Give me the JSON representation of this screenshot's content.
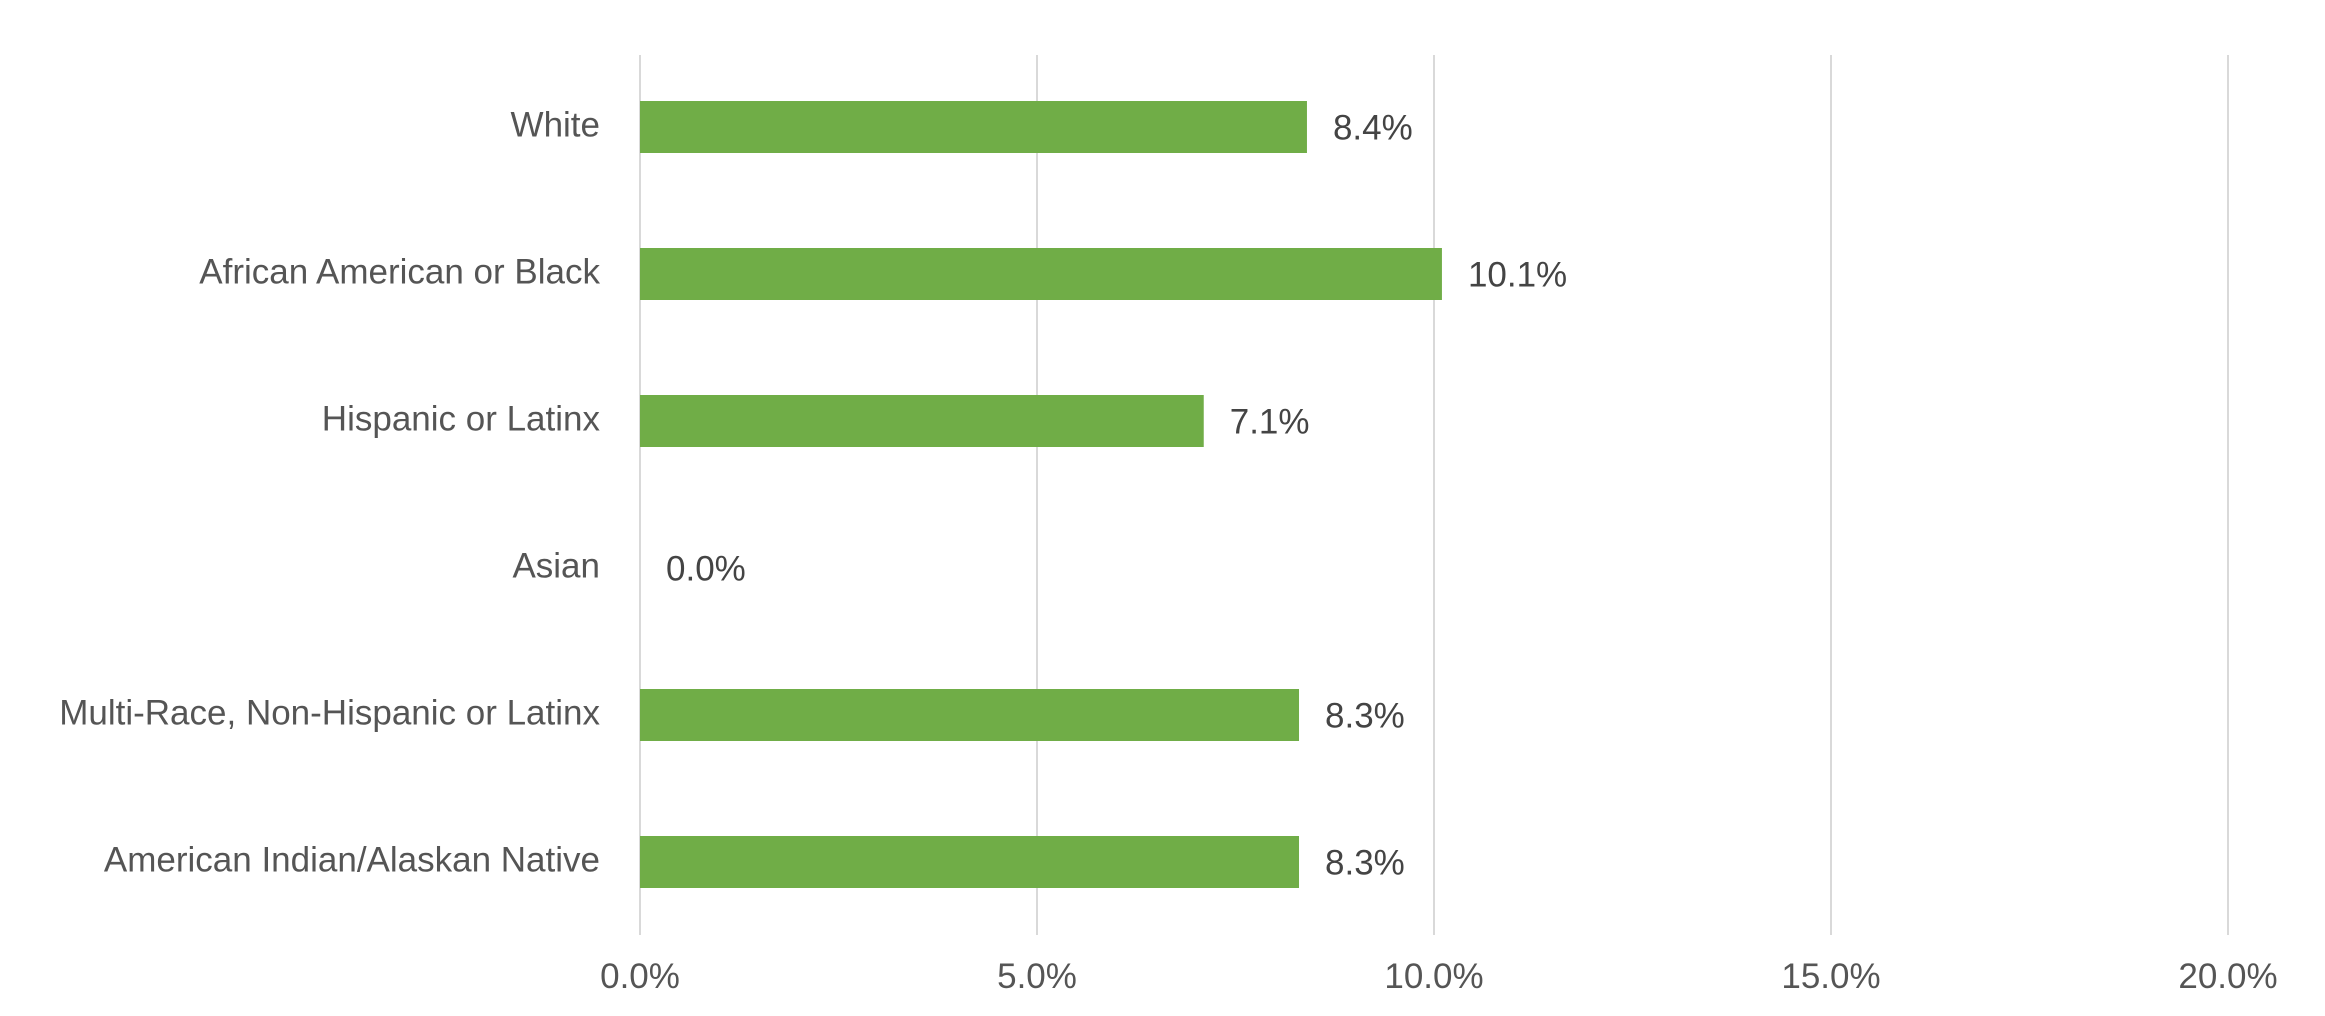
{
  "chart_data": {
    "type": "bar",
    "orientation": "horizontal",
    "title": "",
    "xlabel": "",
    "ylabel": "",
    "categories": [
      "White",
      "African American or Black",
      "Hispanic or Latinx",
      "Asian",
      "Multi-Race, Non-Hispanic or Latinx",
      "American Indian/Alaskan Native"
    ],
    "values": [
      8.4,
      10.1,
      7.1,
      0.0,
      8.3,
      8.3
    ],
    "data_labels": [
      "8.4%",
      "10.1%",
      "7.1%",
      "0.0%",
      "8.3%",
      "8.3%"
    ],
    "xlim": [
      0,
      20
    ],
    "ticks": [
      0,
      5,
      10,
      15,
      20
    ],
    "tick_labels": [
      "0.0%",
      "5.0%",
      "10.0%",
      "15.0%",
      "20.0%"
    ],
    "grid": "vertical",
    "legend": "none",
    "colors": {
      "bar": "#70AD47",
      "grid": "#D9D9D9",
      "axis_text": "#555555",
      "data_label": "#444444"
    }
  }
}
